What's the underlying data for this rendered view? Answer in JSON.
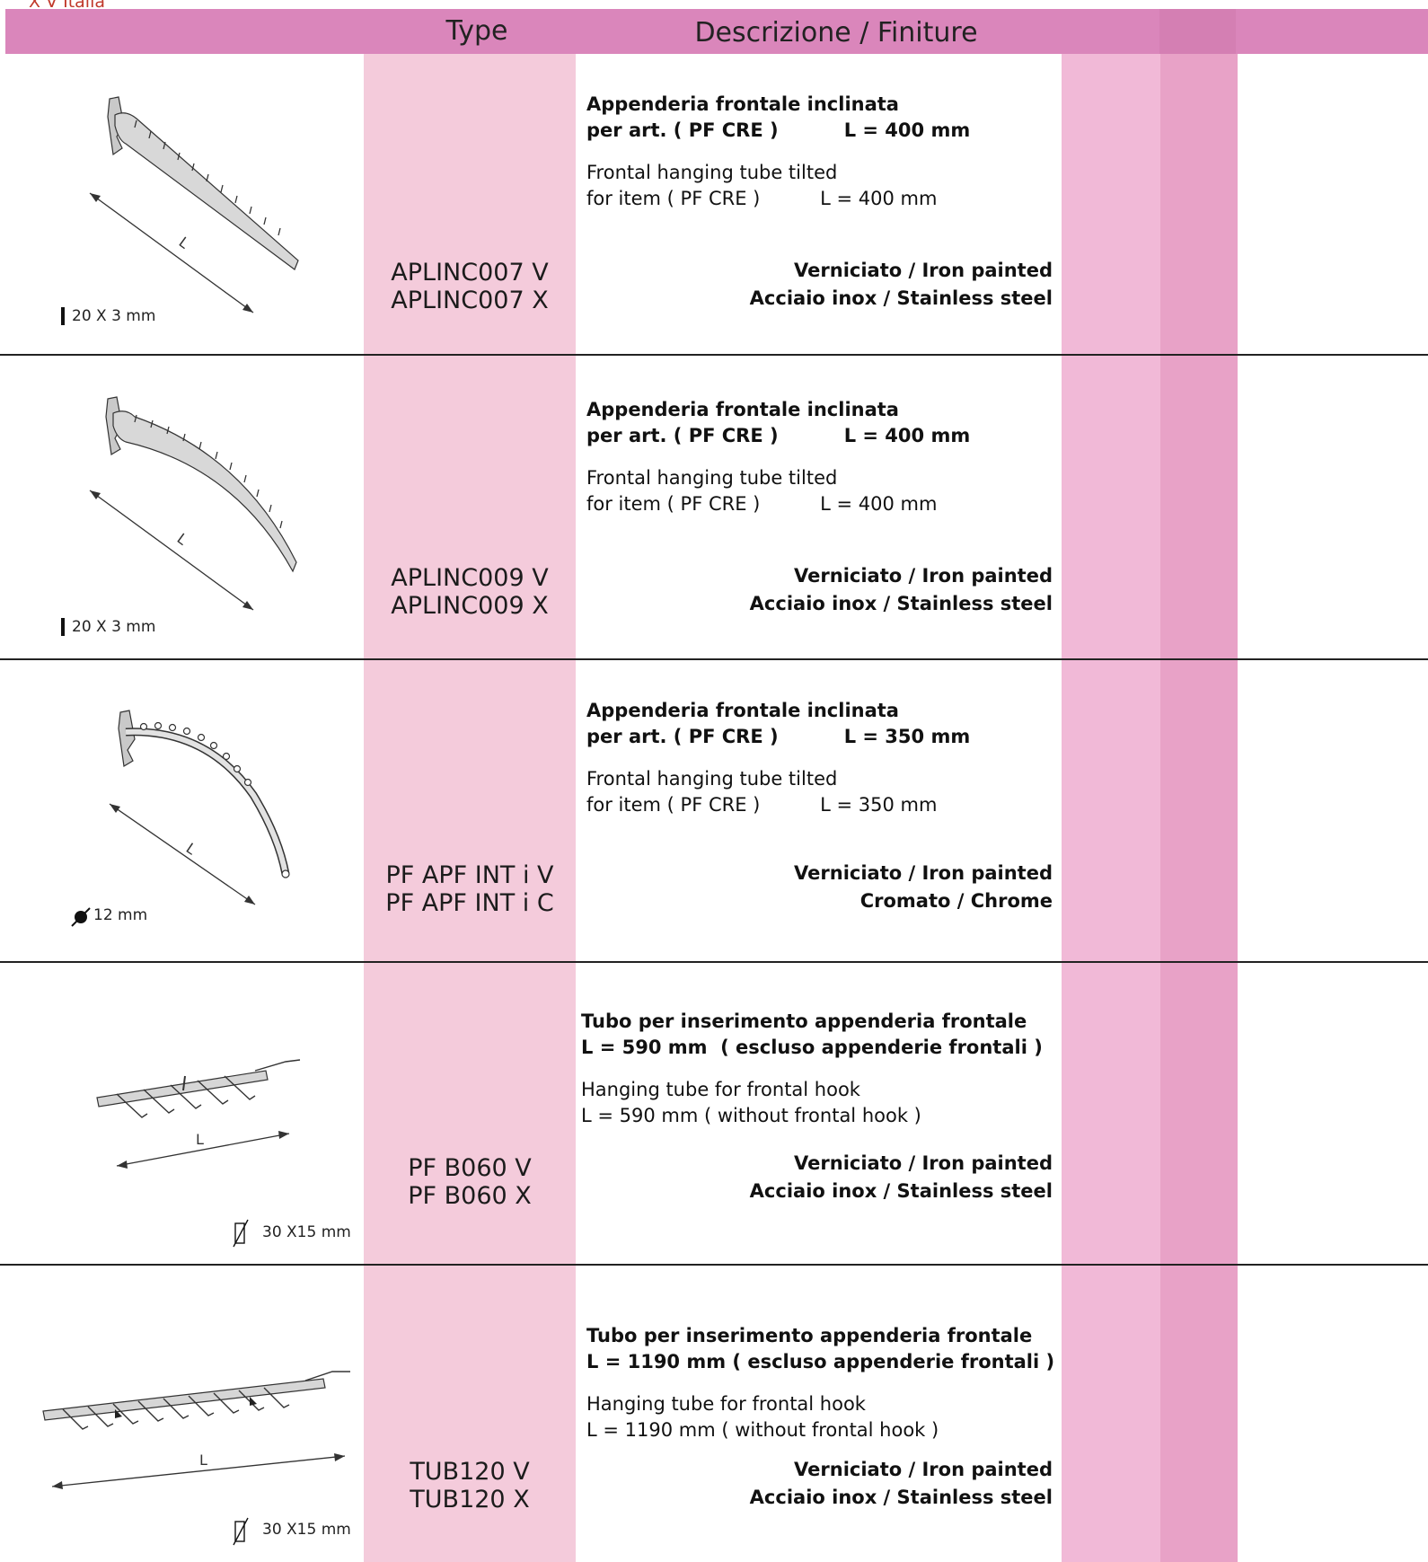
{
  "brand": "X V Italia",
  "header": {
    "type_label": "Type",
    "desc_label": "Descrizione / Finiture"
  },
  "rows": [
    {
      "dimension": "20 X 3 mm",
      "length_mark": "L",
      "codes": [
        "APLINC007 V",
        "APLINC007 X"
      ],
      "it_line1": "Appenderia frontale inclinata",
      "it_line2": "per art. ( PF CRE )          L = 400 mm",
      "en_line1": "Frontal hanging tube tilted",
      "en_line2": "for item ( PF CRE )          L = 400 mm",
      "finish1": "Verniciato / Iron painted",
      "finish2": "Acciaio inox / Stainless steel"
    },
    {
      "dimension": "20 X 3 mm",
      "length_mark": "L",
      "codes": [
        "APLINC009 V",
        "APLINC009 X"
      ],
      "it_line1": "Appenderia frontale inclinata",
      "it_line2": "per art. ( PF CRE )          L = 400 mm",
      "en_line1": "Frontal hanging tube tilted",
      "en_line2": "for item ( PF CRE )          L = 400 mm",
      "finish1": "Verniciato / Iron painted",
      "finish2": "Acciaio inox / Stainless steel"
    },
    {
      "dimension": "12 mm",
      "length_mark": "L",
      "codes": [
        "PF APF INT i V",
        "PF APF INT i C"
      ],
      "it_line1": "Appenderia frontale inclinata",
      "it_line2": "per art. ( PF CRE )          L = 350 mm",
      "en_line1": "Frontal hanging tube tilted",
      "en_line2": "for item ( PF CRE )          L = 350 mm",
      "finish1": "Verniciato / Iron painted",
      "finish2": "Cromato / Chrome"
    },
    {
      "dimension": "30 X15 mm",
      "length_mark": "L",
      "codes": [
        "PF B060 V",
        "PF B060 X"
      ],
      "it_line1": "Tubo per inserimento appenderia frontale",
      "it_line2": "L = 590 mm  ( escluso appenderie frontali )",
      "en_line1": "Hanging tube for frontal hook",
      "en_line2": "L = 590 mm ( without frontal hook )",
      "finish1": "Verniciato / Iron painted",
      "finish2": "Acciaio inox / Stainless steel"
    },
    {
      "dimension": "30 X15 mm",
      "length_mark": "L",
      "codes": [
        "TUB120 V",
        "TUB120 X"
      ],
      "it_line1": "Tubo per inserimento appenderia frontale",
      "it_line2": "L = 1190 mm ( escluso appenderie frontali )",
      "en_line1": "Hanging tube for frontal hook",
      "en_line2": "L = 1190 mm ( without frontal hook )",
      "finish1": "Verniciato / Iron painted",
      "finish2": "Acciaio inox / Stainless steel"
    }
  ]
}
